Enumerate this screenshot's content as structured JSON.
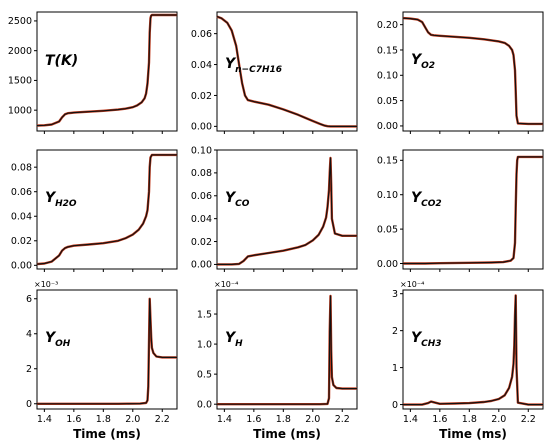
{
  "colors": {
    "line_dark": "#111111",
    "line_red": "#c0391b",
    "axes": "#000000",
    "background": "#ffffff"
  },
  "x_axis": {
    "label": "Time (ms)",
    "range": [
      1.35,
      2.3
    ],
    "ticks": [
      "1.4",
      "1.6",
      "1.8",
      "2.0",
      "2.2"
    ]
  },
  "chart_data": [
    {
      "type": "line",
      "id": "T",
      "label": {
        "main": "T(K)",
        "sub": ""
      },
      "multiplier": "",
      "ylim": [
        650,
        2650
      ],
      "yticks": [
        "1000",
        "1500",
        "2000",
        "2500"
      ],
      "x": [
        1.35,
        1.4,
        1.45,
        1.5,
        1.52,
        1.54,
        1.56,
        1.58,
        1.6,
        1.7,
        1.8,
        1.9,
        1.95,
        2.0,
        2.03,
        2.06,
        2.08,
        2.09,
        2.1,
        2.11,
        2.115,
        2.12,
        2.125,
        2.13,
        2.2,
        2.3
      ],
      "y": [
        740,
        745,
        760,
        810,
        880,
        930,
        950,
        955,
        960,
        975,
        990,
        1010,
        1025,
        1050,
        1080,
        1130,
        1200,
        1280,
        1450,
        1800,
        2300,
        2550,
        2590,
        2600,
        2600,
        2600
      ]
    },
    {
      "type": "line",
      "id": "nC7H16",
      "label": {
        "main": "Y",
        "sub": "n−C7H16"
      },
      "multiplier": "",
      "ylim": [
        -0.003,
        0.074
      ],
      "yticks": [
        "0.00",
        "0.02",
        "0.04",
        "0.06"
      ],
      "x": [
        1.35,
        1.38,
        1.42,
        1.45,
        1.48,
        1.5,
        1.52,
        1.54,
        1.56,
        1.6,
        1.7,
        1.8,
        1.9,
        1.95,
        2.0,
        2.05,
        2.08,
        2.1,
        2.12,
        2.2,
        2.3
      ],
      "y": [
        0.071,
        0.07,
        0.067,
        0.062,
        0.052,
        0.04,
        0.028,
        0.02,
        0.017,
        0.016,
        0.014,
        0.011,
        0.0075,
        0.0055,
        0.0035,
        0.0015,
        0.0005,
        0.0001,
        0.0,
        0.0,
        0.0
      ]
    },
    {
      "type": "line",
      "id": "O2",
      "label": {
        "main": "Y",
        "sub": "O2"
      },
      "multiplier": "",
      "ylim": [
        -0.01,
        0.225
      ],
      "yticks": [
        "0.00",
        "0.05",
        "0.10",
        "0.15",
        "0.20"
      ],
      "x": [
        1.35,
        1.4,
        1.45,
        1.48,
        1.5,
        1.52,
        1.54,
        1.56,
        1.6,
        1.7,
        1.8,
        1.9,
        2.0,
        2.04,
        2.07,
        2.09,
        2.1,
        2.11,
        2.115,
        2.12,
        2.13,
        2.2,
        2.3
      ],
      "y": [
        0.213,
        0.212,
        0.21,
        0.205,
        0.195,
        0.185,
        0.18,
        0.179,
        0.178,
        0.176,
        0.174,
        0.171,
        0.167,
        0.164,
        0.158,
        0.15,
        0.14,
        0.11,
        0.07,
        0.02,
        0.005,
        0.004,
        0.004
      ]
    },
    {
      "type": "line",
      "id": "H2O",
      "label": {
        "main": "Y",
        "sub": "H2O"
      },
      "multiplier": "",
      "ylim": [
        -0.003,
        0.094
      ],
      "yticks": [
        "0.00",
        "0.02",
        "0.04",
        "0.06",
        "0.08"
      ],
      "x": [
        1.35,
        1.4,
        1.45,
        1.5,
        1.52,
        1.54,
        1.56,
        1.58,
        1.6,
        1.7,
        1.8,
        1.9,
        1.95,
        2.0,
        2.04,
        2.07,
        2.09,
        2.1,
        2.11,
        2.115,
        2.12,
        2.13,
        2.2,
        2.3
      ],
      "y": [
        0.001,
        0.0015,
        0.003,
        0.008,
        0.012,
        0.014,
        0.015,
        0.0155,
        0.016,
        0.017,
        0.018,
        0.02,
        0.022,
        0.025,
        0.029,
        0.034,
        0.04,
        0.045,
        0.06,
        0.08,
        0.088,
        0.09,
        0.09,
        0.09
      ]
    },
    {
      "type": "line",
      "id": "CO",
      "label": {
        "main": "Y",
        "sub": "CO"
      },
      "multiplier": "",
      "ylim": [
        -0.004,
        0.1
      ],
      "yticks": [
        "0.00",
        "0.02",
        "0.04",
        "0.06",
        "0.08",
        "0.10"
      ],
      "x": [
        1.35,
        1.45,
        1.5,
        1.53,
        1.56,
        1.6,
        1.7,
        1.8,
        1.9,
        1.95,
        2.0,
        2.04,
        2.07,
        2.09,
        2.1,
        2.11,
        2.115,
        2.12,
        2.125,
        2.13,
        2.15,
        2.2,
        2.3
      ],
      "y": [
        0.0,
        0.0,
        0.0005,
        0.003,
        0.007,
        0.008,
        0.01,
        0.012,
        0.015,
        0.017,
        0.021,
        0.026,
        0.033,
        0.041,
        0.05,
        0.065,
        0.08,
        0.093,
        0.07,
        0.04,
        0.027,
        0.025,
        0.025
      ]
    },
    {
      "type": "line",
      "id": "CO2",
      "label": {
        "main": "Y",
        "sub": "CO2"
      },
      "multiplier": "",
      "ylim": [
        -0.008,
        0.165
      ],
      "yticks": [
        "0.00",
        "0.05",
        "0.10",
        "0.15"
      ],
      "x": [
        1.35,
        1.5,
        1.6,
        1.8,
        1.95,
        2.03,
        2.08,
        2.1,
        2.11,
        2.115,
        2.12,
        2.125,
        2.13,
        2.2,
        2.3
      ],
      "y": [
        0.0,
        0.0,
        0.0005,
        0.001,
        0.0015,
        0.002,
        0.004,
        0.008,
        0.03,
        0.08,
        0.13,
        0.15,
        0.155,
        0.155,
        0.155
      ]
    },
    {
      "type": "line",
      "id": "OH",
      "label": {
        "main": "Y",
        "sub": "OH"
      },
      "multiplier": "×10⁻³",
      "ylim": [
        -0.3,
        6.5
      ],
      "yticks": [
        "0",
        "2",
        "4",
        "6"
      ],
      "x": [
        1.35,
        1.6,
        1.9,
        2.05,
        2.09,
        2.1,
        2.105,
        2.11,
        2.115,
        2.12,
        2.125,
        2.13,
        2.14,
        2.16,
        2.2,
        2.3
      ],
      "y": [
        0.0,
        0.0,
        0.0,
        0.01,
        0.05,
        0.2,
        1.0,
        3.5,
        6.0,
        4.8,
        3.8,
        3.2,
        2.9,
        2.7,
        2.65,
        2.65
      ]
    },
    {
      "type": "line",
      "id": "H",
      "label": {
        "main": "Y",
        "sub": "H"
      },
      "multiplier": "×10⁻⁴",
      "ylim": [
        -0.08,
        1.9
      ],
      "yticks": [
        "0.0",
        "0.5",
        "1.0",
        "1.5"
      ],
      "x": [
        1.35,
        1.6,
        1.9,
        2.05,
        2.1,
        2.11,
        2.115,
        2.12,
        2.125,
        2.13,
        2.14,
        2.16,
        2.2,
        2.3
      ],
      "y": [
        0.0,
        0.0,
        0.0,
        0.0,
        0.005,
        0.1,
        1.2,
        1.8,
        0.9,
        0.45,
        0.32,
        0.27,
        0.26,
        0.26
      ]
    },
    {
      "type": "line",
      "id": "CH3",
      "label": {
        "main": "Y",
        "sub": "CH3"
      },
      "multiplier": "×10⁻⁴",
      "ylim": [
        -0.12,
        3.1
      ],
      "yticks": [
        "0",
        "1",
        "2",
        "3"
      ],
      "x": [
        1.35,
        1.48,
        1.52,
        1.54,
        1.56,
        1.6,
        1.7,
        1.8,
        1.9,
        1.95,
        2.0,
        2.04,
        2.07,
        2.09,
        2.1,
        2.105,
        2.11,
        2.115,
        2.12,
        2.13,
        2.2,
        2.3
      ],
      "y": [
        0.0,
        0.0,
        0.04,
        0.08,
        0.06,
        0.02,
        0.03,
        0.04,
        0.07,
        0.1,
        0.15,
        0.25,
        0.45,
        0.75,
        1.1,
        1.6,
        2.4,
        2.95,
        1.0,
        0.05,
        0.0,
        0.0
      ]
    }
  ]
}
